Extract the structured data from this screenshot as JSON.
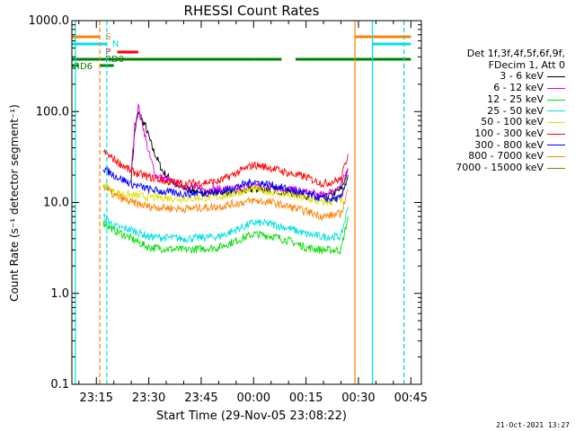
{
  "chart_data": {
    "type": "line",
    "title": "RHESSI Count Rates",
    "xlabel": "Start Time (29-Nov-05 23:08:22)",
    "ylabel": "Count Rate (s⁻¹ detector segment⁻¹)",
    "y_scale": "log",
    "ylim": [
      0.1,
      1000
    ],
    "xlim": [
      "23:08",
      "00:48"
    ],
    "y_ticks": [
      "0.1",
      "1.0",
      "10.0",
      "100.0",
      "1000.0"
    ],
    "x_ticks": [
      "23:15",
      "23:30",
      "23:45",
      "00:00",
      "00:15",
      "00:30",
      "00:45"
    ],
    "legend_header": [
      "Det 1f,3f,4f,5f,6f,9f,",
      "FDecim 1, Att 0"
    ],
    "legend_position": "right",
    "series": [
      {
        "name": "3 - 6 keV",
        "color": "#000000",
        "points": [
          [
            "23:25",
            20
          ],
          [
            "23:26",
            60
          ],
          [
            "23:27",
            95
          ],
          [
            "23:29",
            70
          ],
          [
            "23:31",
            40
          ],
          [
            "23:34",
            22
          ],
          [
            "23:38",
            15
          ],
          [
            "23:45",
            13
          ],
          [
            "23:55",
            13
          ],
          [
            "00:00",
            14
          ],
          [
            "00:05",
            14
          ],
          [
            "00:10",
            13
          ],
          [
            "00:15",
            12
          ],
          [
            "00:20",
            11
          ],
          [
            "00:25",
            14
          ],
          [
            "00:27",
            22
          ]
        ]
      },
      {
        "name": "6 - 12 keV",
        "color": "#e000e0",
        "points": [
          [
            "23:25",
            22
          ],
          [
            "23:26",
            70
          ],
          [
            "23:27",
            115
          ],
          [
            "23:28",
            80
          ],
          [
            "23:30",
            35
          ],
          [
            "23:32",
            20
          ],
          [
            "23:38",
            16
          ],
          [
            "23:45",
            14
          ],
          [
            "23:55",
            14
          ],
          [
            "00:00",
            16
          ],
          [
            "00:05",
            15
          ],
          [
            "00:10",
            14
          ],
          [
            "00:15",
            13
          ],
          [
            "00:20",
            12
          ],
          [
            "00:25",
            15
          ],
          [
            "00:27",
            24
          ]
        ]
      },
      {
        "name": "12 - 25 keV",
        "color": "#00e000",
        "points": [
          [
            "23:17",
            6
          ],
          [
            "23:20",
            5
          ],
          [
            "23:25",
            4
          ],
          [
            "23:30",
            3.2
          ],
          [
            "23:40",
            3
          ],
          [
            "23:50",
            3.2
          ],
          [
            "00:00",
            4.5
          ],
          [
            "00:05",
            4.3
          ],
          [
            "00:10",
            3.8
          ],
          [
            "00:15",
            3.2
          ],
          [
            "00:20",
            3
          ],
          [
            "00:25",
            3
          ],
          [
            "00:27",
            7
          ]
        ]
      },
      {
        "name": "25 - 50 keV",
        "color": "#00e0e0",
        "points": [
          [
            "23:17",
            7
          ],
          [
            "23:20",
            5.5
          ],
          [
            "23:25",
            5
          ],
          [
            "23:30",
            4.2
          ],
          [
            "23:40",
            4
          ],
          [
            "23:50",
            4.2
          ],
          [
            "00:00",
            6
          ],
          [
            "00:05",
            5.8
          ],
          [
            "00:10",
            5.2
          ],
          [
            "00:15",
            4.5
          ],
          [
            "00:20",
            4.2
          ],
          [
            "00:25",
            4.2
          ],
          [
            "00:27",
            9
          ]
        ]
      },
      {
        "name": "50 - 100 keV",
        "color": "#e0e000",
        "points": [
          [
            "23:17",
            16
          ],
          [
            "23:20",
            13
          ],
          [
            "23:25",
            12
          ],
          [
            "23:30",
            11.5
          ],
          [
            "23:40",
            11
          ],
          [
            "23:50",
            11.5
          ],
          [
            "00:00",
            14
          ],
          [
            "00:05",
            13
          ],
          [
            "00:10",
            12
          ],
          [
            "00:15",
            11
          ],
          [
            "00:20",
            10
          ],
          [
            "00:25",
            10.5
          ],
          [
            "00:27",
            20
          ]
        ]
      },
      {
        "name": "100 - 300 keV",
        "color": "#ff0000",
        "points": [
          [
            "23:17",
            36
          ],
          [
            "23:20",
            30
          ],
          [
            "23:25",
            22
          ],
          [
            "23:30",
            19
          ],
          [
            "23:35",
            17
          ],
          [
            "23:40",
            16
          ],
          [
            "23:50",
            17
          ],
          [
            "00:00",
            26
          ],
          [
            "00:05",
            24
          ],
          [
            "00:10",
            21
          ],
          [
            "00:15",
            19
          ],
          [
            "00:20",
            16
          ],
          [
            "00:25",
            18
          ],
          [
            "00:27",
            34
          ]
        ]
      },
      {
        "name": "300 - 800 keV",
        "color": "#0000ff",
        "points": [
          [
            "23:17",
            24
          ],
          [
            "23:20",
            20
          ],
          [
            "23:25",
            16
          ],
          [
            "23:30",
            14
          ],
          [
            "23:35",
            13
          ],
          [
            "23:40",
            12.5
          ],
          [
            "23:50",
            13
          ],
          [
            "00:00",
            17
          ],
          [
            "00:05",
            15.5
          ],
          [
            "00:10",
            14
          ],
          [
            "00:15",
            12.5
          ],
          [
            "00:20",
            11
          ],
          [
            "00:25",
            11
          ],
          [
            "00:27",
            20
          ]
        ]
      },
      {
        "name": "800 - 7000 keV",
        "color": "#ff8000",
        "points": [
          [
            "23:17",
            15
          ],
          [
            "23:20",
            12
          ],
          [
            "23:25",
            10
          ],
          [
            "23:30",
            9
          ],
          [
            "23:40",
            8.5
          ],
          [
            "23:50",
            9
          ],
          [
            "00:00",
            10.5
          ],
          [
            "00:05",
            10
          ],
          [
            "00:10",
            9
          ],
          [
            "00:15",
            8
          ],
          [
            "00:20",
            7
          ],
          [
            "00:25",
            7.5
          ],
          [
            "00:27",
            14
          ]
        ]
      },
      {
        "name": "7000 - 15000 keV",
        "color": "#808000",
        "points": []
      }
    ],
    "flags": {
      "S": {
        "label": "S",
        "color": "#ff8000"
      },
      "N": {
        "label": "N",
        "color": "#00e0e0"
      },
      "P": {
        "label": "P",
        "color": "#ff0000"
      },
      "RD0": {
        "label": "RD0",
        "color": "#008000"
      },
      "RD6": {
        "label": "RD6",
        "color": "#008000"
      }
    },
    "vlines": [
      {
        "x": "23:09",
        "color": "#00e0e0",
        "style": "solid"
      },
      {
        "x": "23:16",
        "color": "#ff8000",
        "style": "dashed"
      },
      {
        "x": "23:18",
        "color": "#00e0e0",
        "style": "dashed"
      },
      {
        "x": "00:29",
        "color": "#ff8000",
        "style": "solid"
      },
      {
        "x": "00:34",
        "color": "#00e0e0",
        "style": "solid"
      },
      {
        "x": "00:43",
        "color": "#ff8000",
        "style": "dashed"
      },
      {
        "x": "00:43",
        "color": "#00e0e0",
        "style": "dashed"
      }
    ],
    "timestamp": "21-Oct-2021 13:27"
  }
}
